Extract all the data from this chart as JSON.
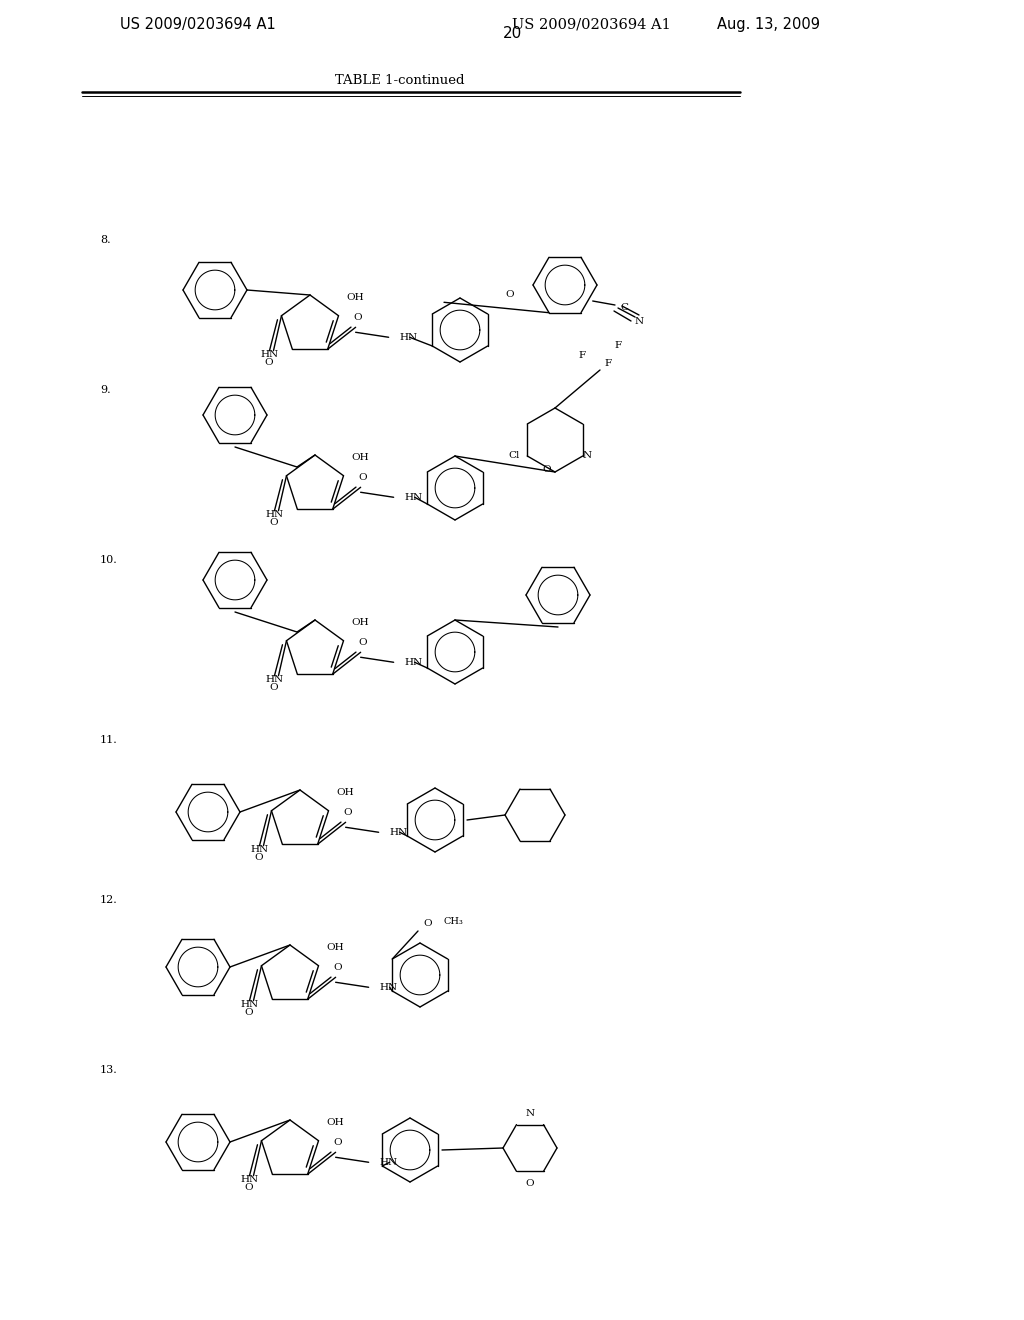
{
  "page_number": "20",
  "patent_number": "US 2009/0203694 A1",
  "date": "Aug. 13, 2009",
  "table_title": "TABLE 1-continued",
  "background_color": "#ffffff",
  "text_color": "#000000",
  "figsize": [
    10.24,
    13.2
  ],
  "dpi": 100
}
